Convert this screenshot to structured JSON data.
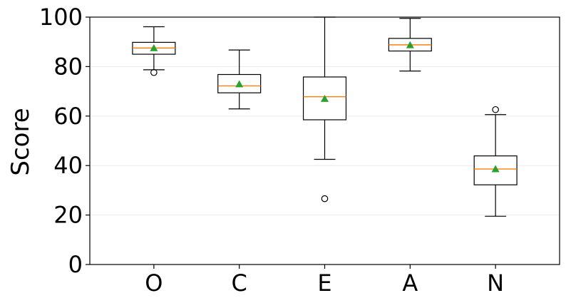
{
  "chart_data": {
    "type": "box",
    "ylabel": "Score",
    "ylim": [
      0,
      100
    ],
    "yticks": [
      0,
      20,
      40,
      60,
      80,
      100
    ],
    "ytick_labels": [
      "0",
      "20",
      "40",
      "60",
      "80",
      "100"
    ],
    "grid": "horizontal",
    "categories": [
      "O",
      "C",
      "E",
      "A",
      "N"
    ],
    "boxes": [
      {
        "q1": 85,
        "median": 87.5,
        "q3": 89.8,
        "whisker_low": 78.7,
        "whisker_high": 96.1,
        "mean": 87.5,
        "outliers": [
          77.6
        ]
      },
      {
        "q1": 69.4,
        "median": 72.2,
        "q3": 76.8,
        "whisker_low": 62.9,
        "whisker_high": 86.7,
        "mean": 72.9,
        "outliers": []
      },
      {
        "q1": 58.5,
        "median": 67.8,
        "q3": 75.8,
        "whisker_low": 42.5,
        "whisker_high": 100,
        "mean": 67,
        "outliers": [
          26.6
        ]
      },
      {
        "q1": 86.3,
        "median": 88.8,
        "q3": 91.4,
        "whisker_low": 78.2,
        "whisker_high": 99.5,
        "mean": 88.7,
        "outliers": []
      },
      {
        "q1": 32.2,
        "median": 38.6,
        "q3": 43.9,
        "whisker_low": 19.5,
        "whisker_high": 60.6,
        "mean": 38.6,
        "outliers": [
          62.6
        ]
      }
    ],
    "colors": {
      "box": "#000000",
      "median": "#ff7f0e",
      "mean": "#2ca02c",
      "grid": "#e6e6e6"
    }
  }
}
